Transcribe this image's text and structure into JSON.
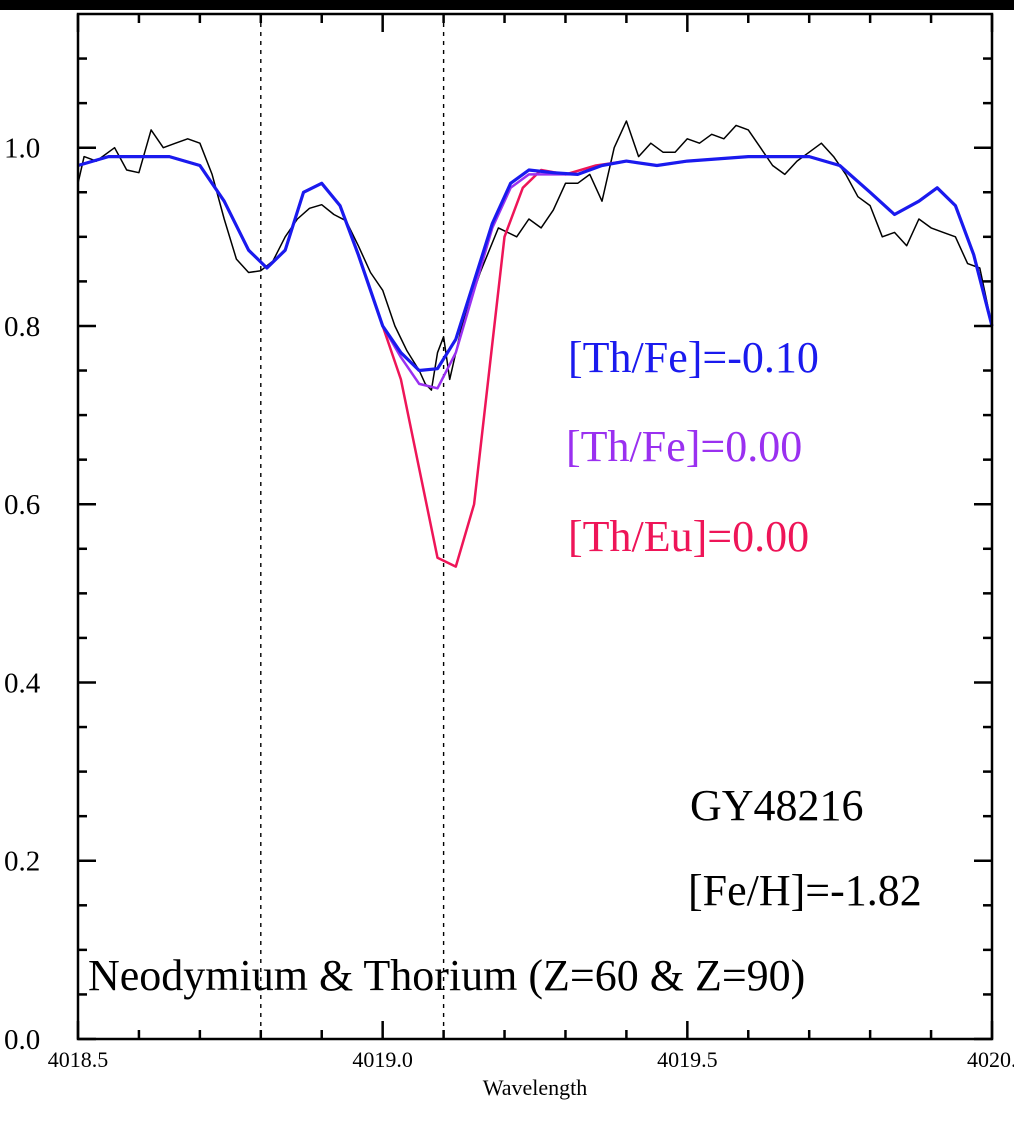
{
  "chart_data": {
    "type": "line",
    "title": "",
    "xlabel": "Wavelength",
    "ylabel": "",
    "xlim": [
      4018.5,
      4020.0
    ],
    "ylim": [
      0.0,
      1.15
    ],
    "xticks": [
      4018.5,
      4019.0,
      4019.5,
      4020.0
    ],
    "xtick_labels": [
      "4018.5",
      "4019.0",
      "4019.5",
      "4020."
    ],
    "yticks": [
      0.0,
      0.2,
      0.4,
      0.6,
      0.8,
      1.0
    ],
    "ytick_labels": [
      "0.0",
      "0.2",
      "0.4",
      "0.6",
      "0.8",
      "1.0"
    ],
    "grid": false,
    "vlines": [
      4018.8,
      4019.1
    ],
    "series": [
      {
        "color": "#000000",
        "points": [
          [
            4018.5,
            0.96
          ],
          [
            4018.51,
            0.99
          ],
          [
            4018.53,
            0.985
          ],
          [
            4018.56,
            1.0
          ],
          [
            4018.58,
            0.975
          ],
          [
            4018.6,
            0.972
          ],
          [
            4018.62,
            1.02
          ],
          [
            4018.64,
            1.0
          ],
          [
            4018.66,
            1.005
          ],
          [
            4018.68,
            1.01
          ],
          [
            4018.7,
            1.005
          ],
          [
            4018.72,
            0.97
          ],
          [
            4018.74,
            0.92
          ],
          [
            4018.76,
            0.875
          ],
          [
            4018.78,
            0.86
          ],
          [
            4018.8,
            0.862
          ],
          [
            4018.82,
            0.873
          ],
          [
            4018.84,
            0.9
          ],
          [
            4018.86,
            0.92
          ],
          [
            4018.88,
            0.932
          ],
          [
            4018.9,
            0.936
          ],
          [
            4018.92,
            0.925
          ],
          [
            4018.94,
            0.918
          ],
          [
            4018.96,
            0.89
          ],
          [
            4018.98,
            0.86
          ],
          [
            4019.0,
            0.84
          ],
          [
            4019.02,
            0.8
          ],
          [
            4019.04,
            0.772
          ],
          [
            4019.06,
            0.75
          ],
          [
            4019.07,
            0.735
          ],
          [
            4019.08,
            0.728
          ],
          [
            4019.09,
            0.77
          ],
          [
            4019.1,
            0.788
          ],
          [
            4019.11,
            0.74
          ],
          [
            4019.13,
            0.8
          ],
          [
            4019.16,
            0.86
          ],
          [
            4019.19,
            0.91
          ],
          [
            4019.22,
            0.9
          ],
          [
            4019.24,
            0.92
          ],
          [
            4019.26,
            0.91
          ],
          [
            4019.28,
            0.93
          ],
          [
            4019.3,
            0.96
          ],
          [
            4019.32,
            0.96
          ],
          [
            4019.34,
            0.97
          ],
          [
            4019.36,
            0.94
          ],
          [
            4019.38,
            1.0
          ],
          [
            4019.4,
            1.03
          ],
          [
            4019.42,
            0.99
          ],
          [
            4019.44,
            1.005
          ],
          [
            4019.46,
            0.995
          ],
          [
            4019.48,
            0.995
          ],
          [
            4019.5,
            1.01
          ],
          [
            4019.52,
            1.005
          ],
          [
            4019.54,
            1.015
          ],
          [
            4019.56,
            1.01
          ],
          [
            4019.58,
            1.025
          ],
          [
            4019.6,
            1.02
          ],
          [
            4019.62,
            1.0
          ],
          [
            4019.64,
            0.98
          ],
          [
            4019.66,
            0.97
          ],
          [
            4019.68,
            0.985
          ],
          [
            4019.7,
            0.995
          ],
          [
            4019.72,
            1.005
          ],
          [
            4019.74,
            0.99
          ],
          [
            4019.76,
            0.97
          ],
          [
            4019.78,
            0.945
          ],
          [
            4019.8,
            0.935
          ],
          [
            4019.82,
            0.9
          ],
          [
            4019.84,
            0.905
          ],
          [
            4019.86,
            0.89
          ],
          [
            4019.88,
            0.92
          ],
          [
            4019.9,
            0.91
          ],
          [
            4019.92,
            0.905
          ],
          [
            4019.94,
            0.9
          ],
          [
            4019.96,
            0.87
          ],
          [
            4019.98,
            0.865
          ],
          [
            4020.0,
            0.8
          ]
        ]
      },
      {
        "name": "[Th/Eu]=0.00",
        "color": "#ee1558",
        "points": [
          [
            4018.5,
            0.98
          ],
          [
            4018.55,
            0.99
          ],
          [
            4018.65,
            0.99
          ],
          [
            4018.7,
            0.98
          ],
          [
            4018.74,
            0.94
          ],
          [
            4018.78,
            0.885
          ],
          [
            4018.81,
            0.865
          ],
          [
            4018.84,
            0.885
          ],
          [
            4018.87,
            0.95
          ],
          [
            4018.9,
            0.96
          ],
          [
            4018.93,
            0.935
          ],
          [
            4018.96,
            0.88
          ],
          [
            4018.98,
            0.84
          ],
          [
            4019.0,
            0.8
          ],
          [
            4019.03,
            0.74
          ],
          [
            4019.06,
            0.64
          ],
          [
            4019.09,
            0.54
          ],
          [
            4019.12,
            0.53
          ],
          [
            4019.15,
            0.6
          ],
          [
            4019.18,
            0.78
          ],
          [
            4019.2,
            0.9
          ],
          [
            4019.23,
            0.955
          ],
          [
            4019.26,
            0.975
          ],
          [
            4019.3,
            0.97
          ],
          [
            4019.35,
            0.98
          ],
          [
            4019.4,
            0.985
          ],
          [
            4019.45,
            0.98
          ],
          [
            4019.5,
            0.985
          ],
          [
            4019.6,
            0.99
          ],
          [
            4019.7,
            0.99
          ],
          [
            4019.75,
            0.98
          ],
          [
            4019.8,
            0.95
          ],
          [
            4019.84,
            0.925
          ],
          [
            4019.88,
            0.94
          ],
          [
            4019.91,
            0.955
          ],
          [
            4019.94,
            0.935
          ],
          [
            4019.97,
            0.88
          ],
          [
            4020.0,
            0.8
          ]
        ]
      },
      {
        "name": "[Th/Fe]=0.00",
        "color": "#9a30f0",
        "points": [
          [
            4018.5,
            0.98
          ],
          [
            4018.55,
            0.99
          ],
          [
            4018.65,
            0.99
          ],
          [
            4018.7,
            0.98
          ],
          [
            4018.74,
            0.94
          ],
          [
            4018.78,
            0.885
          ],
          [
            4018.81,
            0.865
          ],
          [
            4018.84,
            0.885
          ],
          [
            4018.87,
            0.95
          ],
          [
            4018.9,
            0.96
          ],
          [
            4018.93,
            0.935
          ],
          [
            4018.96,
            0.88
          ],
          [
            4018.98,
            0.84
          ],
          [
            4019.0,
            0.8
          ],
          [
            4019.03,
            0.765
          ],
          [
            4019.06,
            0.735
          ],
          [
            4019.09,
            0.73
          ],
          [
            4019.12,
            0.77
          ],
          [
            4019.15,
            0.84
          ],
          [
            4019.18,
            0.91
          ],
          [
            4019.21,
            0.955
          ],
          [
            4019.24,
            0.97
          ],
          [
            4019.28,
            0.97
          ],
          [
            4019.32,
            0.97
          ],
          [
            4019.36,
            0.98
          ],
          [
            4019.4,
            0.985
          ],
          [
            4019.45,
            0.98
          ],
          [
            4019.5,
            0.985
          ],
          [
            4019.6,
            0.99
          ],
          [
            4019.7,
            0.99
          ],
          [
            4019.75,
            0.98
          ],
          [
            4019.8,
            0.95
          ],
          [
            4019.84,
            0.925
          ],
          [
            4019.88,
            0.94
          ],
          [
            4019.91,
            0.955
          ],
          [
            4019.94,
            0.935
          ],
          [
            4019.97,
            0.88
          ],
          [
            4020.0,
            0.8
          ]
        ]
      },
      {
        "name": "[Th/Fe]=-0.10",
        "color": "#1a1aee",
        "points": [
          [
            4018.5,
            0.98
          ],
          [
            4018.55,
            0.99
          ],
          [
            4018.65,
            0.99
          ],
          [
            4018.7,
            0.98
          ],
          [
            4018.74,
            0.94
          ],
          [
            4018.78,
            0.885
          ],
          [
            4018.81,
            0.865
          ],
          [
            4018.84,
            0.885
          ],
          [
            4018.87,
            0.95
          ],
          [
            4018.9,
            0.96
          ],
          [
            4018.93,
            0.935
          ],
          [
            4018.96,
            0.88
          ],
          [
            4018.98,
            0.84
          ],
          [
            4019.0,
            0.8
          ],
          [
            4019.03,
            0.77
          ],
          [
            4019.06,
            0.75
          ],
          [
            4019.09,
            0.752
          ],
          [
            4019.12,
            0.785
          ],
          [
            4019.15,
            0.85
          ],
          [
            4019.18,
            0.915
          ],
          [
            4019.21,
            0.96
          ],
          [
            4019.24,
            0.975
          ],
          [
            4019.28,
            0.972
          ],
          [
            4019.32,
            0.97
          ],
          [
            4019.36,
            0.98
          ],
          [
            4019.4,
            0.985
          ],
          [
            4019.45,
            0.98
          ],
          [
            4019.5,
            0.985
          ],
          [
            4019.6,
            0.99
          ],
          [
            4019.7,
            0.99
          ],
          [
            4019.75,
            0.98
          ],
          [
            4019.8,
            0.95
          ],
          [
            4019.84,
            0.925
          ],
          [
            4019.88,
            0.94
          ],
          [
            4019.91,
            0.955
          ],
          [
            4019.94,
            0.935
          ],
          [
            4019.97,
            0.88
          ],
          [
            4020.0,
            0.8
          ]
        ]
      }
    ],
    "annotations": [
      {
        "text": "[Th/Fe]=-0.10",
        "color": "#1a1aee"
      },
      {
        "text": "[Th/Fe]=0.00",
        "color": "#9a30f0"
      },
      {
        "text": "[Th/Eu]=0.00",
        "color": "#ee1558"
      },
      {
        "text": "GY48216",
        "color": "#000000"
      },
      {
        "text": "[Fe/H]=-1.82",
        "color": "#000000"
      },
      {
        "text": "Neodymium & Thorium (Z=60 & Z=90)",
        "color": "#000000"
      }
    ]
  }
}
